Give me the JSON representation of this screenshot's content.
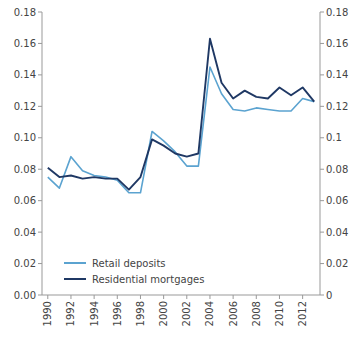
{
  "chart_data": {
    "type": "line",
    "x": [
      1990,
      1991,
      1992,
      1993,
      1994,
      1995,
      1996,
      1997,
      1998,
      1999,
      2000,
      2001,
      2002,
      2003,
      2004,
      2005,
      2006,
      2007,
      2008,
      2009,
      2010,
      2011,
      2012,
      2013
    ],
    "series": [
      {
        "name": "Retail deposits",
        "color": "#5ba3d0",
        "values": [
          0.075,
          0.068,
          0.088,
          0.079,
          0.076,
          0.075,
          0.073,
          0.065,
          0.065,
          0.104,
          0.098,
          0.091,
          0.082,
          0.082,
          0.145,
          0.128,
          0.118,
          0.117,
          0.119,
          0.118,
          0.117,
          0.117,
          0.125,
          0.123
        ]
      },
      {
        "name": "Residential mortgages",
        "color": "#1f3864",
        "values": [
          0.081,
          0.075,
          0.076,
          0.074,
          0.075,
          0.074,
          0.074,
          0.067,
          0.075,
          0.099,
          0.095,
          0.09,
          0.088,
          0.09,
          0.163,
          0.135,
          0.125,
          0.13,
          0.126,
          0.125,
          0.132,
          0.127,
          0.132,
          0.123
        ]
      }
    ],
    "xlim": [
      1989.5,
      2013.5
    ],
    "xticks": [
      1990,
      1992,
      1994,
      1996,
      1998,
      2000,
      2002,
      2004,
      2006,
      2008,
      2010,
      2012
    ],
    "ylim": [
      0.0,
      0.18
    ],
    "yticks": [
      {
        "value": 0.0,
        "label": "0.00"
      },
      0.02,
      0.04,
      0.06,
      0.08,
      {
        "value": 0.1,
        "label": "0.10"
      },
      0.12,
      0.14,
      0.16,
      0.18
    ],
    "y2lim": [
      0.0,
      0.18
    ],
    "y2ticks": [
      0,
      0.02,
      0.04,
      0.06,
      0.08,
      0.1,
      0.12,
      0.14,
      0.16,
      0.18
    ],
    "legend": "lower left",
    "grid": false
  }
}
